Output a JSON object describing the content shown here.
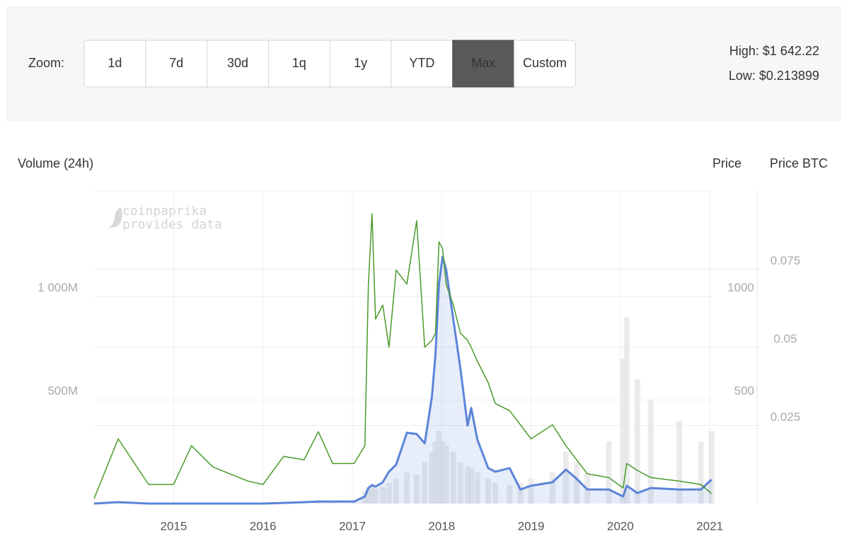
{
  "toolbar": {
    "zoom_label": "Zoom:",
    "buttons": [
      "1d",
      "7d",
      "30d",
      "1q",
      "1y",
      "YTD",
      "Max",
      "Custom"
    ],
    "selected_button": "Max",
    "high": "High: $1 642.22",
    "low": "Low: $0.213899"
  },
  "chart_data": {
    "type": "line",
    "title": "Volume (24h)",
    "watermark": [
      "coinpaprika",
      "provides data"
    ],
    "x": [
      2014.11,
      2014.38,
      2014.72,
      2015.0,
      2015.2,
      2015.44,
      2015.83,
      2016.0,
      2016.23,
      2016.46,
      2016.62,
      2016.78,
      2017.02,
      2017.14,
      2017.18,
      2017.22,
      2017.26,
      2017.34,
      2017.41,
      2017.49,
      2017.61,
      2017.72,
      2017.81,
      2017.89,
      2017.93,
      2017.97,
      2018.01,
      2018.05,
      2018.13,
      2018.21,
      2018.29,
      2018.33,
      2018.4,
      2018.52,
      2018.6,
      2018.76,
      2018.88,
      2019.0,
      2019.24,
      2019.39,
      2019.51,
      2019.63,
      2019.87,
      2020.03,
      2020.07,
      2020.19,
      2020.34,
      2020.66,
      2020.9,
      2021.02
    ],
    "xlim": [
      2014.11,
      2021.03
    ],
    "xticks": [
      2015,
      2016,
      2017,
      2018,
      2019,
      2020,
      2021
    ],
    "ylim": [
      0,
      1510000000
    ],
    "yticks": [
      {
        "value": 500000000,
        "label": "500M"
      },
      {
        "value": 1000000000,
        "label": "1 000M"
      }
    ],
    "y2lim": [
      0,
      1510
    ],
    "y2ticks": [
      500,
      1000
    ],
    "y3lim": [
      0,
      0.1
    ],
    "y3ticks": [
      0.025,
      0.05,
      0.075
    ],
    "grid": true,
    "series": [
      {
        "name": "Volume",
        "axis": "y",
        "kind": "bar",
        "color": "#e6e6e6",
        "values": [
          1000000,
          2000000,
          1000000,
          2000000,
          3000000,
          2000000,
          2000000,
          2000000,
          3000000,
          5000000,
          5000000,
          5000000,
          10000000,
          60000000,
          80000000,
          90000000,
          70000000,
          80000000,
          100000000,
          120000000,
          150000000,
          140000000,
          200000000,
          250000000,
          300000000,
          350000000,
          300000000,
          280000000,
          250000000,
          200000000,
          180000000,
          170000000,
          150000000,
          120000000,
          100000000,
          90000000,
          100000000,
          120000000,
          150000000,
          250000000,
          200000000,
          150000000,
          300000000,
          700000000,
          900000000,
          600000000,
          500000000,
          400000000,
          300000000,
          350000000
        ]
      },
      {
        "name": "Price",
        "axis": "y2",
        "kind": "area",
        "color": "#5b84d8",
        "values": [
          0,
          7,
          0,
          0,
          0,
          0,
          0,
          0,
          3,
          7,
          10,
          10,
          10,
          34,
          75,
          89,
          82,
          103,
          154,
          188,
          342,
          336,
          291,
          514,
          719,
          1062,
          1192,
          1130,
          890,
          651,
          377,
          462,
          308,
          171,
          154,
          171,
          68,
          86,
          103,
          164,
          120,
          68,
          68,
          34,
          86,
          51,
          75,
          68,
          68,
          116
        ]
      },
      {
        "name": "Price BTC",
        "axis": "y3",
        "kind": "line",
        "color": "#4a9a2a",
        "values": [
          0.0016,
          0.0207,
          0.0061,
          0.0061,
          0.0185,
          0.0117,
          0.0072,
          0.0061,
          0.0151,
          0.014,
          0.023,
          0.0128,
          0.0128,
          0.0185,
          0.0702,
          0.0927,
          0.059,
          0.0635,
          0.05,
          0.0747,
          0.0702,
          0.0905,
          0.05,
          0.0522,
          0.0545,
          0.0837,
          0.0815,
          0.0702,
          0.0635,
          0.0545,
          0.0522,
          0.05,
          0.0455,
          0.0387,
          0.032,
          0.0297,
          0.0252,
          0.0207,
          0.0252,
          0.0185,
          0.014,
          0.0095,
          0.0083,
          0.005,
          0.0128,
          0.0106,
          0.0083,
          0.0072,
          0.0061,
          0.0032
        ]
      }
    ]
  }
}
